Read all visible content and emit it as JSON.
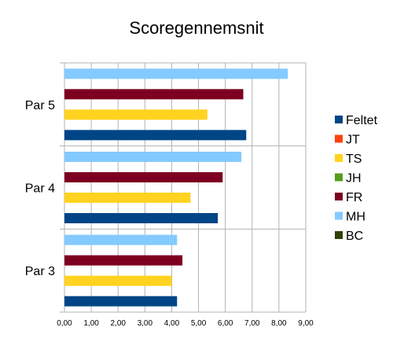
{
  "chart_data": {
    "type": "bar",
    "orientation": "horizontal",
    "title": "Scoregennemsnit",
    "categories": [
      "Par 3",
      "Par 4",
      "Par 5"
    ],
    "xlim": [
      0,
      9
    ],
    "xticks": [
      "0,00",
      "1,00",
      "2,00",
      "3,00",
      "4,00",
      "5,00",
      "6,00",
      "7,00",
      "8,00",
      "9,00"
    ],
    "grid": true,
    "legend_position": "right",
    "series": [
      {
        "name": "Feltet",
        "color": "#004586",
        "values": [
          4.2,
          5.72,
          6.78
        ]
      },
      {
        "name": "JT",
        "color": "#ff420e",
        "values": [
          null,
          null,
          null
        ]
      },
      {
        "name": "TS",
        "color": "#ffd320",
        "values": [
          4.0,
          4.7,
          5.33
        ]
      },
      {
        "name": "JH",
        "color": "#579d1c",
        "values": [
          null,
          null,
          null
        ]
      },
      {
        "name": "FR",
        "color": "#7e0021",
        "values": [
          4.4,
          5.9,
          6.67
        ]
      },
      {
        "name": "MH",
        "color": "#83caff",
        "values": [
          4.2,
          6.6,
          8.33
        ]
      },
      {
        "name": "BC",
        "color": "#314004",
        "values": [
          null,
          null,
          null
        ]
      }
    ]
  }
}
